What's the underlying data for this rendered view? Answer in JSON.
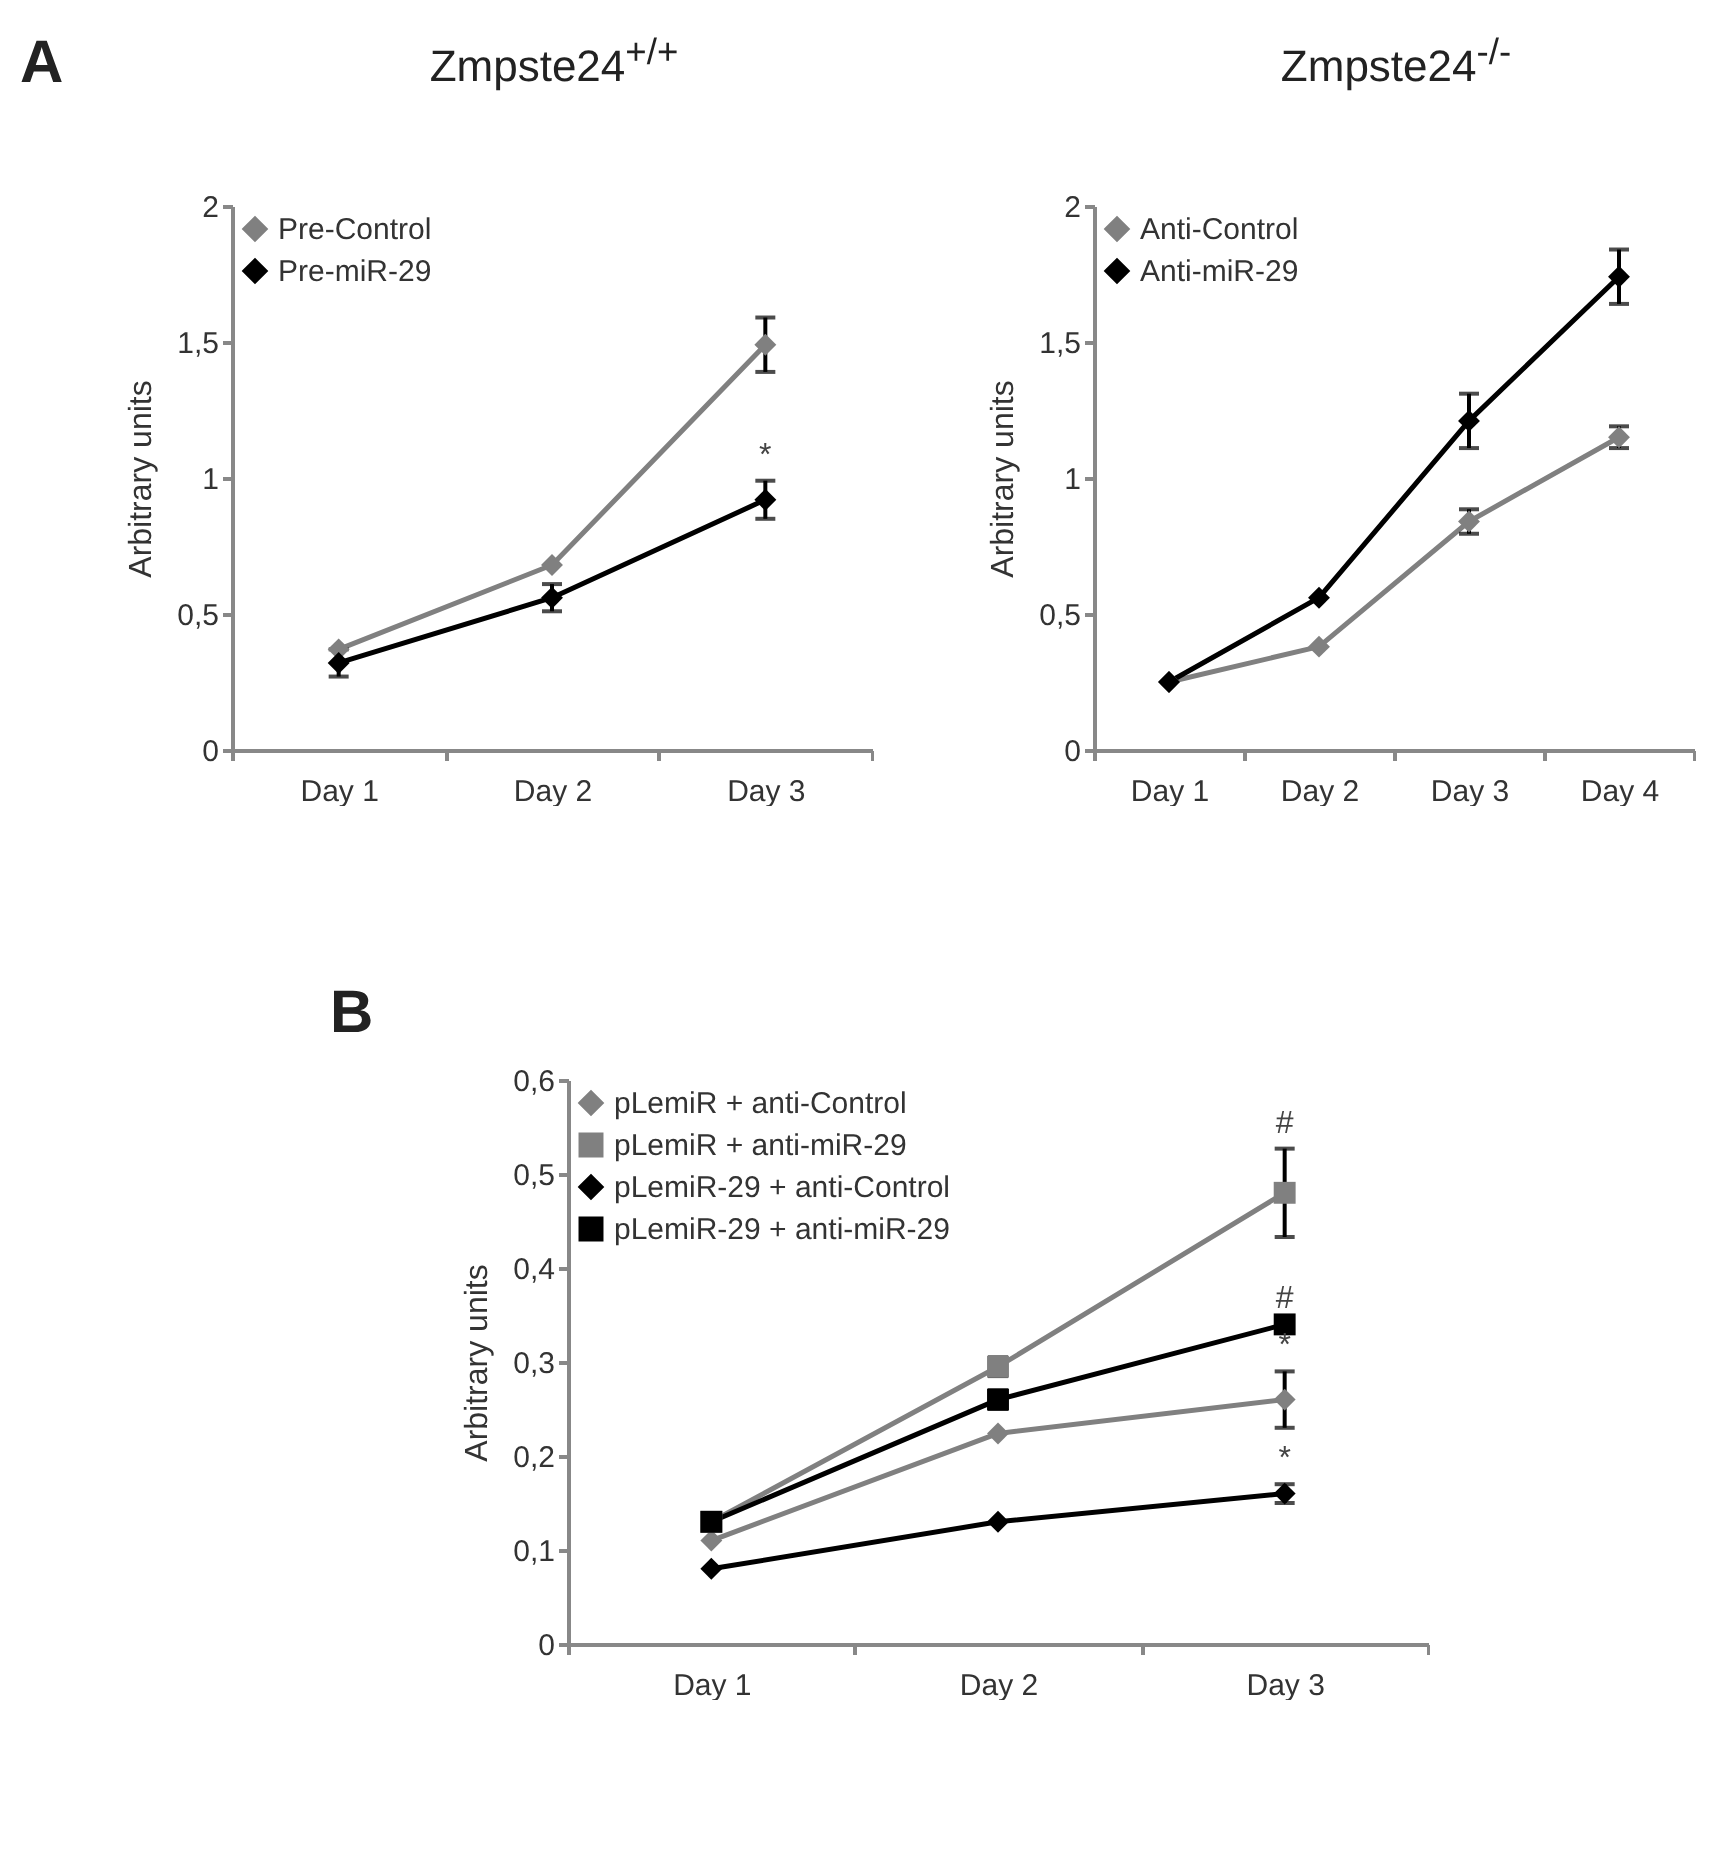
{
  "chart_data": [
    {
      "type": "line",
      "title": "Zmpste24$^{+/+}$",
      "ylabel": "Arbitrary units",
      "categories": [
        "Day 1",
        "Day 2",
        "Day 3"
      ],
      "ylim": [
        0,
        2
      ],
      "yticks": [
        0,
        {
          "value": 0.5,
          "label": "0,5"
        },
        1,
        {
          "value": 1.5,
          "label": "1,5"
        },
        2
      ],
      "grid": false,
      "legend": "top left",
      "annotations": [
        "A",
        {
          "text": "*",
          "x": "Day 3",
          "y": 0.99
        }
      ],
      "series": [
        {
          "name": "Pre-Control",
          "color": "#808080",
          "marker": "diamond",
          "values": [
            0.37,
            0.68,
            1.49
          ],
          "errors": [
            null,
            null,
            0.1
          ]
        },
        {
          "name": "Pre-miR-29",
          "color": "#000000",
          "marker": "diamond",
          "values": [
            0.32,
            0.56,
            0.92
          ],
          "errors": [
            0.05,
            0.05,
            0.07
          ]
        }
      ]
    },
    {
      "type": "line",
      "title": "Zmpste24$^{-/-}$",
      "ylabel": "Arbitrary units",
      "categories": [
        "Day 1",
        "Day 2",
        "Day 3",
        "Day 4"
      ],
      "ylim": [
        0,
        2
      ],
      "yticks": [
        0,
        {
          "value": 0.5,
          "label": "0,5"
        },
        1,
        {
          "value": 1.5,
          "label": "1,5"
        },
        2
      ],
      "grid": false,
      "legend": "top left",
      "series": [
        {
          "name": "Anti-Control",
          "color": "#808080",
          "marker": "diamond",
          "values": [
            0.25,
            0.38,
            0.84,
            1.15
          ],
          "errors": [
            null,
            null,
            0.045,
            0.04
          ]
        },
        {
          "name": "Anti-miR-29",
          "color": "#000000",
          "marker": "diamond",
          "values": [
            0.25,
            0.56,
            1.21,
            1.74
          ],
          "errors": [
            null,
            null,
            0.1,
            0.1
          ]
        }
      ]
    },
    {
      "type": "line",
      "ylabel": "Arbitrary units",
      "categories": [
        "Day 1",
        "Day 2",
        "Day 3"
      ],
      "ylim": [
        0,
        0.6
      ],
      "yticks": [
        0,
        {
          "value": 0.1,
          "label": "0,1"
        },
        {
          "value": 0.2,
          "label": "0,2"
        },
        {
          "value": 0.3,
          "label": "0,3"
        },
        {
          "value": 0.4,
          "label": "0,4"
        },
        {
          "value": 0.5,
          "label": "0,5"
        },
        {
          "value": 0.6,
          "label": "0,6"
        }
      ],
      "grid": false,
      "legend": "top left",
      "annotations": [
        "B",
        {
          "text": "#",
          "x": "Day 3",
          "y": 0.527
        },
        {
          "text": "#",
          "x": "Day 3",
          "y": 0.34
        },
        {
          "text": "*",
          "x": "Day 3",
          "y": 0.29
        },
        {
          "text": "*",
          "x": "Day 3",
          "y": 0.17
        }
      ],
      "series": [
        {
          "name": "pLemiR + anti-Control",
          "color": "#808080",
          "marker": "diamond",
          "values": [
            0.11,
            0.224,
            0.26
          ],
          "errors": [
            null,
            null,
            0.03
          ]
        },
        {
          "name": "pLemiR +  anti-miR-29",
          "color": "#808080",
          "marker": "square",
          "values": [
            0.13,
            0.295,
            0.48
          ],
          "errors": [
            null,
            0.01,
            0.047
          ]
        },
        {
          "name": "pLemiR-29 +  anti-Control",
          "color": "#000000",
          "marker": "diamond",
          "values": [
            0.08,
            0.13,
            0.16
          ],
          "errors": [
            null,
            null,
            0.01
          ]
        },
        {
          "name": "pLemiR-29 + anti-miR-29",
          "color": "#000000",
          "marker": "square",
          "values": [
            0.13,
            0.26,
            0.34
          ],
          "errors": [
            null,
            0.01,
            null
          ]
        }
      ]
    }
  ]
}
